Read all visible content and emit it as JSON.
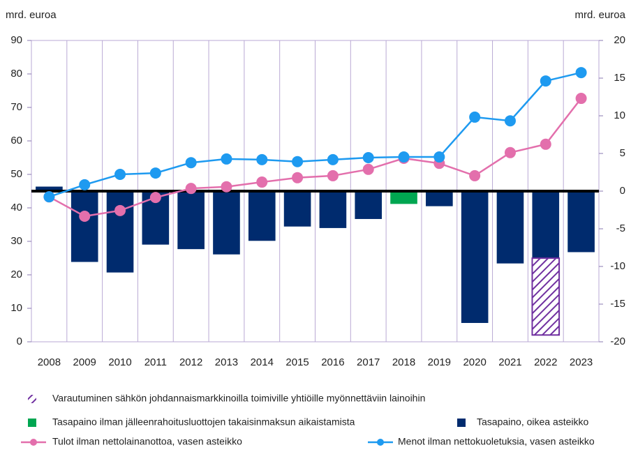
{
  "chart_data": {
    "type": "bar",
    "y_label": "mrd. euroa",
    "y2_label": "mrd. euroa",
    "categories": [
      "2008",
      "2009",
      "2010",
      "2011",
      "2012",
      "2013",
      "2014",
      "2015",
      "2016",
      "2017",
      "2018",
      "2019",
      "2020",
      "2021",
      "2022",
      "2023"
    ],
    "ylim": [
      0,
      90
    ],
    "yticks": [
      0,
      10,
      20,
      30,
      40,
      50,
      60,
      70,
      80,
      90
    ],
    "y2lim": [
      -20,
      20
    ],
    "y2ticks": [
      -20,
      -15,
      -10,
      -5,
      0,
      5,
      10,
      15,
      20
    ],
    "grid": true,
    "series": [
      {
        "name": "Varautuminen sähkön johdannaismarkkinoilla toimiville yhtiöille myönnettäviin lainoihin",
        "type": "bar",
        "pattern": "hatch",
        "color": "#7030a0",
        "axis": "y2",
        "values": [
          null,
          null,
          null,
          null,
          null,
          null,
          null,
          null,
          null,
          null,
          null,
          null,
          null,
          null,
          -10.2,
          null
        ]
      },
      {
        "name": "Tasapaino ilman jälleenrahoitusluottojen takaisinmaksun aikaistamista",
        "type": "bar",
        "color": "#00a651",
        "axis": "y2",
        "values": [
          null,
          null,
          null,
          null,
          null,
          null,
          null,
          null,
          null,
          null,
          -1.7,
          null,
          null,
          null,
          null,
          null
        ]
      },
      {
        "name": "Tasapaino, oikea asteikko",
        "type": "bar",
        "color": "#002b6e",
        "axis": "y2",
        "values": [
          0.6,
          -9.4,
          -10.8,
          -7.1,
          -7.7,
          -8.4,
          -6.6,
          -4.7,
          -4.9,
          -3.7,
          null,
          -2.0,
          -17.5,
          -9.6,
          -8.9,
          -8.1
        ]
      },
      {
        "name": "Tulot ilman nettolainanottoa, vasen asteikko",
        "type": "line",
        "color": "#e36fac",
        "values": [
          43.3,
          37.5,
          39.2,
          43.1,
          45.8,
          46.3,
          47.7,
          49.0,
          49.6,
          51.5,
          54.8,
          53.3,
          49.6,
          56.5,
          59.0,
          72.7
        ]
      },
      {
        "name": "Menot ilman nettokuoletuksia, vasen asteikko",
        "type": "line",
        "color": "#1e9af0",
        "values": [
          43.3,
          46.9,
          50.0,
          50.4,
          53.5,
          54.6,
          54.4,
          53.8,
          54.4,
          55.0,
          55.2,
          55.2,
          67.1,
          66.0,
          77.9,
          80.4
        ]
      }
    ]
  }
}
